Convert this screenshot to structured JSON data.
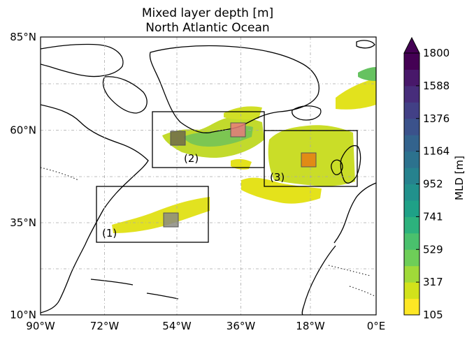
{
  "title_line1": "Mixed layer depth [m]",
  "title_line2": "North Atlantic Ocean",
  "map": {
    "x_ticks": [
      "90°W",
      "72°W",
      "54°W",
      "36°W",
      "18°W",
      "0°E"
    ],
    "y_ticks": [
      "85°N",
      "60°N",
      "35°N",
      "10°N"
    ],
    "grid": "dash-dot",
    "regions": [
      {
        "label": "(1)",
        "lon_range": [
          -75,
          -45
        ],
        "lat_range": [
          30,
          45
        ]
      },
      {
        "label": "(2)",
        "lon_range": [
          -60,
          -30
        ],
        "lat_range": [
          51,
          66
        ]
      },
      {
        "label": "(3)",
        "lon_range": [
          -30,
          -5
        ],
        "lat_range": [
          45,
          60
        ]
      }
    ],
    "markers": [
      {
        "region": "(1)",
        "lon": -53,
        "lat": 36,
        "color": "#8b8b80"
      },
      {
        "region": "(2)",
        "lon": -53,
        "lat": 58,
        "color": "#6e6a4a"
      },
      {
        "region": "(2)",
        "lon": -37,
        "lat": 60,
        "color": "#e77a7a"
      },
      {
        "region": "(3)",
        "lon": -19,
        "lat": 52,
        "color": "#e57c12"
      }
    ]
  },
  "colorbar": {
    "label": "MLD [m]",
    "ticks": [
      "1800",
      "1588",
      "1376",
      "1164",
      "952",
      "741",
      "529",
      "317",
      "105"
    ],
    "colormap": "viridis",
    "extend": "max"
  }
}
